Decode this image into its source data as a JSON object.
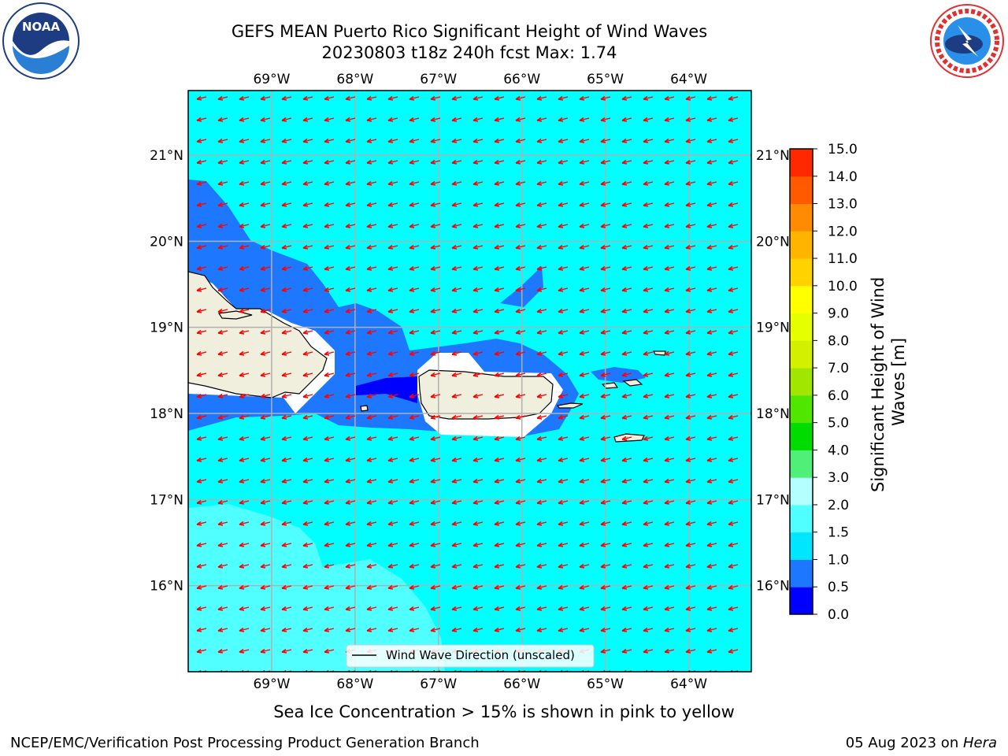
{
  "title": {
    "line1": "GEFS MEAN Puerto Rico Significant Height of Wind Waves",
    "line2": "20230803 t18z 240h fcst   Max: 1.74"
  },
  "logos": {
    "left": {
      "icon": "noaa-logo",
      "text": "NOAA",
      "ring_text": "NATIONAL OCEANIC AND ATMOSPHERIC ADMINISTRATION · U.S. DEPARTMENT OF COMMERCE"
    },
    "right": {
      "icon": "nws-logo",
      "ring_text": "NATIONAL WEATHER SERVICE"
    }
  },
  "map": {
    "lon_ticks": [
      "69°W",
      "68°W",
      "67°W",
      "66°W",
      "65°W",
      "64°W"
    ],
    "lat_ticks": [
      "21°N",
      "20°N",
      "19°N",
      "18°N",
      "17°N",
      "16°N"
    ],
    "lon_range": [
      -70.0,
      -63.25
    ],
    "lat_range": [
      15.0,
      21.75
    ],
    "ocean_color": "#00ffff",
    "land_color": "#f0eedc",
    "arrow_color": "#ff0000",
    "grid": true,
    "legend": {
      "label": "Wind Wave Direction (unscaled)",
      "placement": "bottom-center"
    }
  },
  "colorbar": {
    "label": "Significant Height of Wind Waves [m]",
    "levels": [
      "0.0",
      "0.5",
      "1.0",
      "1.5",
      "2.0",
      "3.0",
      "4.0",
      "5.0",
      "6.0",
      "7.0",
      "8.0",
      "9.0",
      "10.0",
      "11.0",
      "12.0",
      "13.0",
      "14.0",
      "15.0"
    ],
    "colors": [
      "#0000ff",
      "#1e78ff",
      "#00e6ff",
      "#50ffff",
      "#b4ffff",
      "#50f078",
      "#00dc00",
      "#50e600",
      "#a0e600",
      "#d2f000",
      "#e6ff00",
      "#ffff00",
      "#ffd200",
      "#ffb400",
      "#ff8c00",
      "#ff5a00",
      "#ff2800"
    ]
  },
  "caption": "Sea Ice Concentration > 15% is shown in pink to yellow",
  "footer": {
    "left": "NCEP/EMC/Verification Post Processing Product Generation Branch",
    "date": "05 Aug 2023 on ",
    "host": "Hera"
  }
}
